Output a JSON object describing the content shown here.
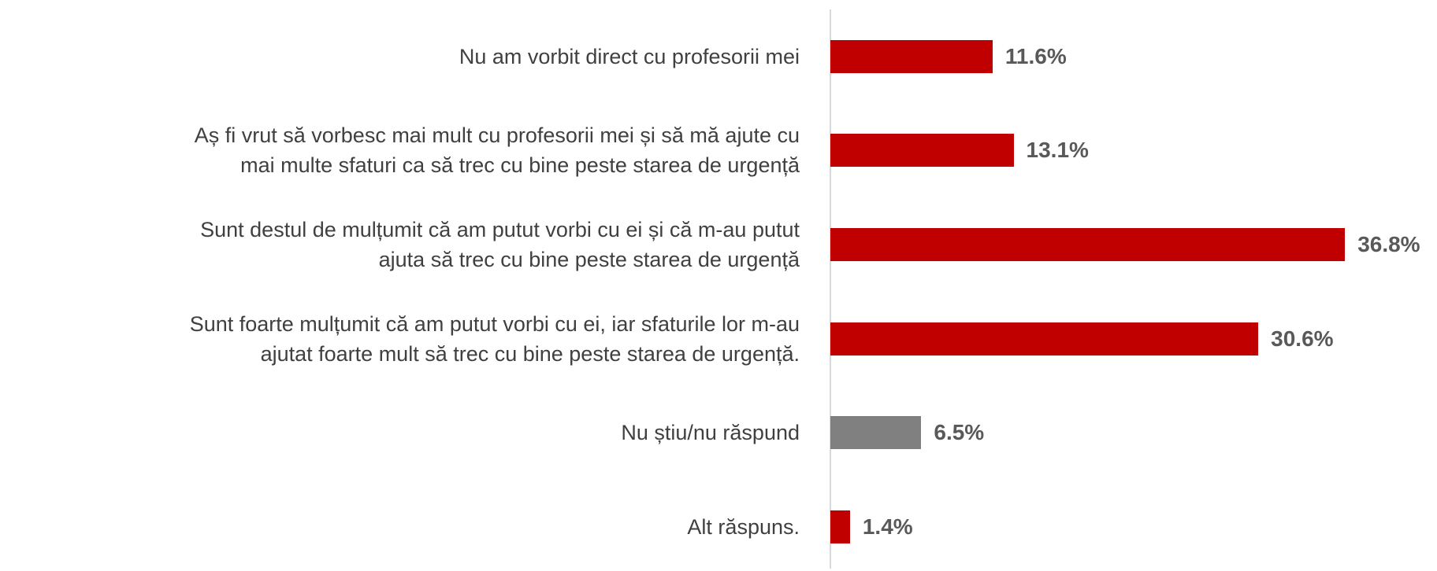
{
  "chart_data": {
    "type": "bar",
    "orientation": "horizontal",
    "categories": [
      "Nu am vorbit direct cu profesorii mei",
      "Aș fi vrut să vorbesc mai mult cu profesorii mei și să mă ajute cu\nmai multe sfaturi ca să trec cu bine peste starea de urgență",
      "Sunt destul de mulțumit că am putut vorbi cu ei și că m-au putut\najuta să trec cu bine peste starea de urgență",
      "Sunt foarte mulțumit că am putut vorbi cu ei, iar sfaturile lor m-au\najutat foarte mult să trec cu bine peste starea de urgență.",
      "Nu știu/nu răspund",
      "Alt răspuns."
    ],
    "values": [
      11.6,
      13.1,
      36.8,
      30.6,
      6.5,
      1.4
    ],
    "value_labels": [
      "11.6%",
      "13.1%",
      "36.8%",
      "30.6%",
      "6.5%",
      "1.4%"
    ],
    "colors": [
      "#c00000",
      "#c00000",
      "#c00000",
      "#c00000",
      "#808080",
      "#c00000"
    ],
    "xlim": [
      0,
      40
    ]
  }
}
